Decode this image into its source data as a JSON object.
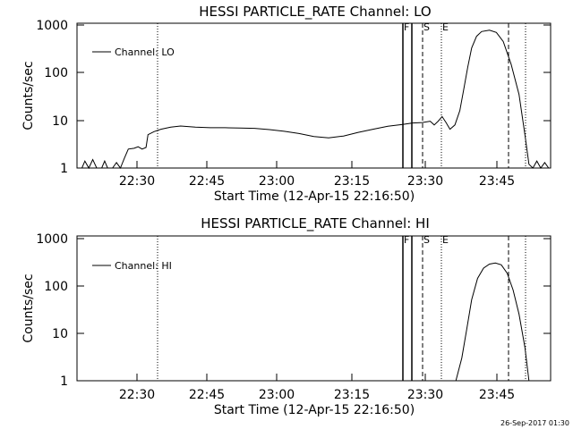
{
  "footer_timestamp": "26-Sep-2017 01:30",
  "chart_data": [
    {
      "type": "line",
      "title": "HESSI PARTICLE_RATE Channel: LO",
      "xlabel": "Start Time (12-Apr-15 22:16:50)",
      "ylabel": "Counts/sec",
      "yscale": "log",
      "ylim": [
        1,
        1000
      ],
      "y_ticks": [
        "1",
        "10",
        "100",
        "1000"
      ],
      "x_ticks": [
        "22:30",
        "22:45",
        "23:00",
        "23:15",
        "23:30",
        "23:45"
      ],
      "legend": "Channel: LO",
      "legend_position": "top-left",
      "markers": [
        {
          "label": "F",
          "style": "solid"
        },
        {
          "label": "S",
          "style": "dashed"
        },
        {
          "label": "E",
          "style": "dotted"
        }
      ],
      "series": [
        {
          "name": "Channel: LO",
          "points": [
            [
              0,
              1.0
            ],
            [
              5,
              1.0
            ],
            [
              8,
              1.4
            ],
            [
              12,
              1.0
            ],
            [
              16,
              1.5
            ],
            [
              20,
              1.0
            ],
            [
              25,
              1.0
            ],
            [
              28,
              1.4
            ],
            [
              31,
              1.0
            ],
            [
              36,
              1.0
            ],
            [
              40,
              1.3
            ],
            [
              44,
              1.0
            ],
            [
              48,
              1.6
            ],
            [
              52,
              2.5
            ],
            [
              58,
              2.6
            ],
            [
              62,
              2.8
            ],
            [
              66,
              2.5
            ],
            [
              70,
              2.7
            ],
            [
              72,
              5.0
            ],
            [
              78,
              5.8
            ],
            [
              85,
              6.5
            ],
            [
              95,
              7.2
            ],
            [
              105,
              7.6
            ],
            [
              120,
              7.2
            ],
            [
              135,
              7.0
            ],
            [
              150,
              7.0
            ],
            [
              165,
              6.9
            ],
            [
              180,
              6.8
            ],
            [
              195,
              6.4
            ],
            [
              210,
              5.9
            ],
            [
              225,
              5.3
            ],
            [
              240,
              4.6
            ],
            [
              255,
              4.3
            ],
            [
              270,
              4.7
            ],
            [
              285,
              5.6
            ],
            [
              300,
              6.5
            ],
            [
              315,
              7.5
            ],
            [
              330,
              8.2
            ],
            [
              340,
              8.8
            ],
            [
              350,
              9.0
            ],
            [
              358,
              9.6
            ],
            [
              362,
              8.0
            ],
            [
              366,
              9.6
            ],
            [
              370,
              12.0
            ],
            [
              374,
              9.0
            ],
            [
              378,
              6.5
            ],
            [
              383,
              8.0
            ],
            [
              388,
              16.0
            ],
            [
              392,
              45.0
            ],
            [
              396,
              130.0
            ],
            [
              400,
              330.0
            ],
            [
              405,
              580.0
            ],
            [
              410,
              730.0
            ],
            [
              418,
              780.0
            ],
            [
              425,
              700.0
            ],
            [
              432,
              450.0
            ],
            [
              440,
              150.0
            ],
            [
              448,
              35.0
            ],
            [
              454,
              5.0
            ],
            [
              458,
              1.2
            ],
            [
              462,
              1.0
            ],
            [
              466,
              1.4
            ],
            [
              470,
              1.0
            ],
            [
              474,
              1.3
            ],
            [
              478,
              1.0
            ]
          ]
        }
      ]
    },
    {
      "type": "line",
      "title": "HESSI PARTICLE_RATE Channel: HI",
      "xlabel": "Start Time (12-Apr-15 22:16:50)",
      "ylabel": "Counts/sec",
      "yscale": "log",
      "ylim": [
        1,
        1000
      ],
      "y_ticks": [
        "1",
        "10",
        "100",
        "1000"
      ],
      "x_ticks": [
        "22:30",
        "22:45",
        "23:00",
        "23:15",
        "23:30",
        "23:45"
      ],
      "legend": "Channel: HI",
      "legend_position": "top-left",
      "markers": [
        {
          "label": "F",
          "style": "solid"
        },
        {
          "label": "S",
          "style": "dashed"
        },
        {
          "label": "E",
          "style": "dotted"
        }
      ],
      "series": [
        {
          "name": "Channel: HI",
          "points": [
            [
              384,
              1.0
            ],
            [
              390,
              3.0
            ],
            [
              395,
              12.0
            ],
            [
              400,
              50.0
            ],
            [
              406,
              140.0
            ],
            [
              412,
              230.0
            ],
            [
              418,
              280.0
            ],
            [
              424,
              295.0
            ],
            [
              430,
              270.0
            ],
            [
              436,
              180.0
            ],
            [
              442,
              80.0
            ],
            [
              448,
              25.0
            ],
            [
              454,
              5.0
            ],
            [
              458,
              1.0
            ]
          ]
        }
      ]
    }
  ]
}
